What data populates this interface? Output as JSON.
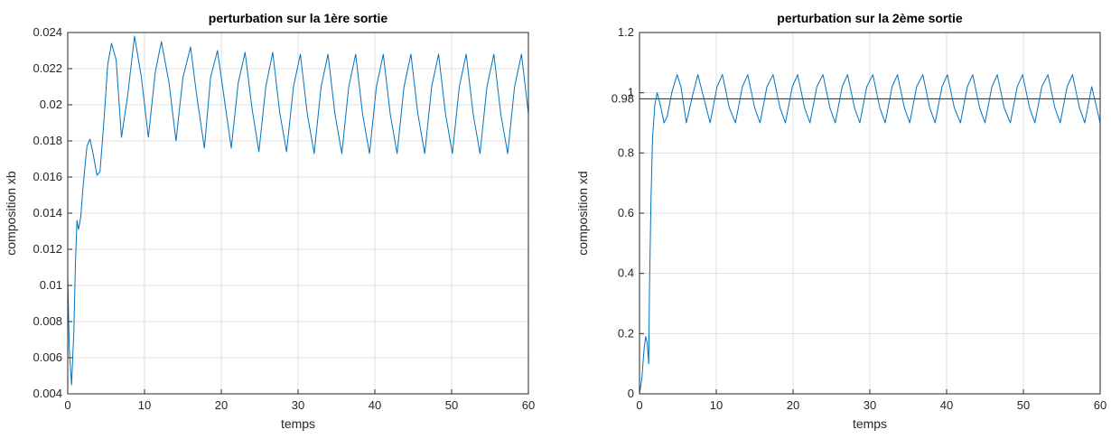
{
  "chart_data": [
    {
      "type": "line",
      "title": "perturbation sur la 1ère sortie",
      "xlabel": "temps",
      "ylabel": "composition xb",
      "xlim": [
        0,
        60
      ],
      "ylim": [
        0.004,
        0.024
      ],
      "xticks": [
        "0",
        "10",
        "20",
        "30",
        "40",
        "50",
        "60"
      ],
      "yticks": [
        "0.004",
        "0.006",
        "0.008",
        "0.01",
        "0.012",
        "0.014",
        "0.016",
        "0.018",
        "0.02",
        "0.022",
        "0.024"
      ],
      "grid": true,
      "line_color": "#0072BD",
      "series": [
        {
          "x": [
            0,
            0.2,
            0.5,
            0.8,
            1.0,
            1.2,
            1.4,
            1.7,
            2.0,
            2.5,
            2.9,
            3.3,
            3.8,
            4.2,
            4.7,
            5.2,
            5.7,
            6.3,
            7.0,
            7.8,
            8.7,
            9.6,
            10.5,
            11.4,
            12.2,
            13.2,
            14.1,
            15.0,
            16.0,
            16.8,
            17.8,
            18.6,
            19.5,
            20.5,
            21.3,
            22.2,
            23.1,
            24.0,
            24.9,
            25.8,
            26.7,
            27.6,
            28.5,
            29.4,
            30.3,
            31.2,
            32.1,
            33.0,
            33.9,
            34.8,
            35.7,
            36.6,
            37.5,
            38.4,
            39.3,
            40.2,
            41.1,
            42.0,
            42.9,
            43.8,
            44.7,
            45.6,
            46.5,
            47.4,
            48.3,
            49.2,
            50.1,
            51.0,
            51.9,
            52.8,
            53.7,
            54.6,
            55.5,
            56.4,
            57.3,
            58.2,
            59.1,
            60.0
          ],
          "y": [
            0.0105,
            0.0065,
            0.0045,
            0.0075,
            0.0112,
            0.0136,
            0.0131,
            0.0138,
            0.0155,
            0.0177,
            0.0181,
            0.0173,
            0.0161,
            0.0163,
            0.019,
            0.0222,
            0.0234,
            0.0225,
            0.0182,
            0.0205,
            0.0238,
            0.0215,
            0.0182,
            0.0218,
            0.0235,
            0.0212,
            0.018,
            0.0215,
            0.0232,
            0.0205,
            0.0176,
            0.0215,
            0.023,
            0.02,
            0.0176,
            0.0212,
            0.0229,
            0.0198,
            0.0174,
            0.021,
            0.0229,
            0.0196,
            0.0174,
            0.021,
            0.0228,
            0.0195,
            0.0173,
            0.021,
            0.0228,
            0.0195,
            0.0173,
            0.021,
            0.0228,
            0.0195,
            0.0173,
            0.021,
            0.0228,
            0.0195,
            0.0173,
            0.021,
            0.0228,
            0.0195,
            0.0173,
            0.021,
            0.0228,
            0.0195,
            0.0173,
            0.021,
            0.0228,
            0.0195,
            0.0173,
            0.021,
            0.0228,
            0.0195,
            0.0173,
            0.021,
            0.0228,
            0.0195
          ]
        }
      ]
    },
    {
      "type": "line",
      "title": "perturbation sur la 2ème sortie",
      "xlabel": "temps",
      "ylabel": "composition xd",
      "xlim": [
        0,
        60
      ],
      "ylim": [
        0,
        1.2
      ],
      "xticks": [
        "0",
        "10",
        "20",
        "30",
        "40",
        "50",
        "60"
      ],
      "yticks": [
        "0",
        "0.2",
        "0.4",
        "0.6",
        "0.8",
        "1",
        "1.2"
      ],
      "extra_ticks": [
        "0.98"
      ],
      "grid": true,
      "line_color": "#0072BD",
      "series": [
        {
          "x": [
            0,
            0.3,
            0.6,
            0.8,
            1.0,
            1.2,
            1.3,
            1.5,
            1.7,
            2.0,
            2.3,
            2.7,
            3.2,
            3.6,
            4.2,
            4.9,
            5.4,
            6.1,
            6.9,
            7.6,
            8.5,
            9.2,
            10.1,
            10.8,
            11.7,
            12.5,
            13.4,
            14.1,
            15.0,
            15.7,
            16.6,
            17.4,
            18.3,
            19.0,
            19.9,
            20.6,
            21.5,
            22.2,
            23.1,
            23.9,
            24.8,
            25.5,
            26.4,
            27.1,
            28.0,
            28.7,
            29.6,
            30.4,
            31.3,
            32.0,
            32.9,
            33.6,
            34.5,
            35.2,
            36.1,
            36.9,
            37.8,
            38.5,
            39.4,
            40.1,
            41.0,
            41.8,
            42.7,
            43.4,
            44.3,
            45.0,
            45.9,
            46.6,
            47.5,
            48.3,
            49.2,
            49.9,
            50.8,
            51.5,
            52.4,
            53.2,
            54.1,
            54.8,
            55.7,
            56.4,
            57.3,
            58.0,
            58.9,
            60.0
          ],
          "y": [
            0.0,
            0.05,
            0.15,
            0.19,
            0.17,
            0.1,
            0.35,
            0.65,
            0.85,
            0.96,
            1.0,
            0.96,
            0.9,
            0.92,
            1.0,
            1.06,
            1.02,
            0.9,
            0.99,
            1.06,
            0.97,
            0.9,
            1.02,
            1.06,
            0.95,
            0.9,
            1.02,
            1.06,
            0.95,
            0.9,
            1.02,
            1.06,
            0.95,
            0.9,
            1.02,
            1.06,
            0.95,
            0.9,
            1.02,
            1.06,
            0.95,
            0.9,
            1.02,
            1.06,
            0.95,
            0.9,
            1.02,
            1.06,
            0.95,
            0.9,
            1.02,
            1.06,
            0.95,
            0.9,
            1.02,
            1.06,
            0.95,
            0.9,
            1.02,
            1.06,
            0.95,
            0.9,
            1.02,
            1.06,
            0.95,
            0.9,
            1.02,
            1.06,
            0.95,
            0.9,
            1.02,
            1.06,
            0.95,
            0.9,
            1.02,
            1.06,
            0.95,
            0.9,
            1.02,
            1.06,
            0.95,
            0.9,
            1.02,
            0.9
          ]
        }
      ]
    }
  ]
}
